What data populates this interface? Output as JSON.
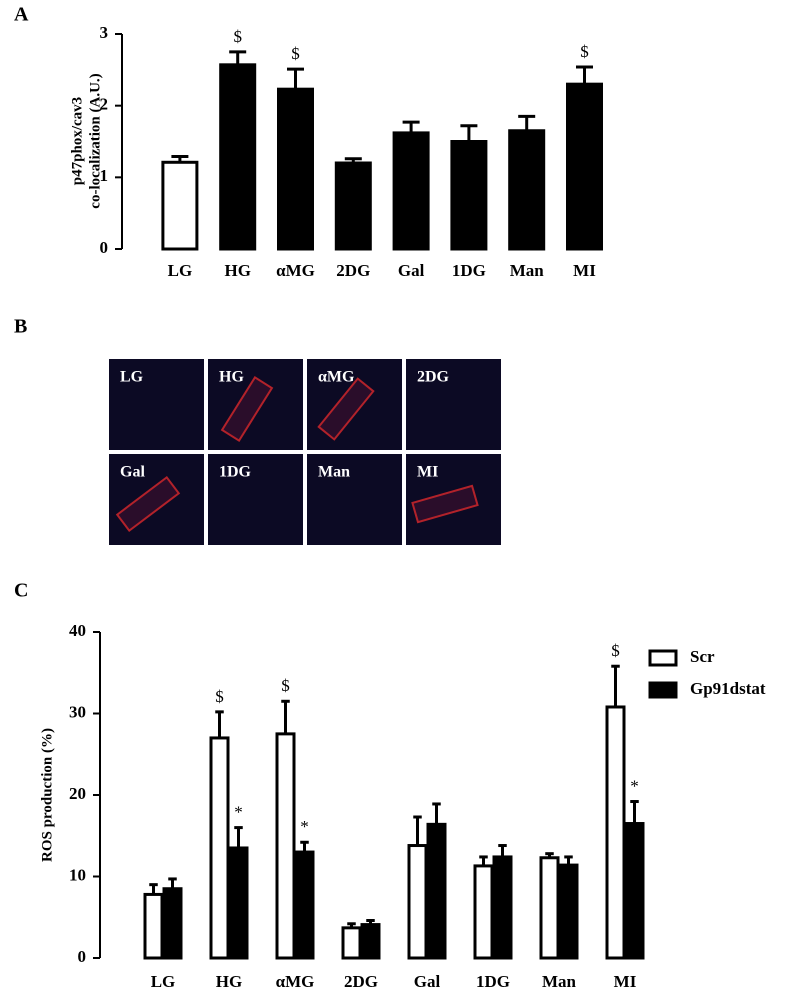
{
  "chart_data": [
    {
      "type": "bar",
      "panel_label": "A",
      "y_label": [
        "p47phox/cav3",
        "co-localization (A.U.)"
      ],
      "categories": [
        "LG",
        "HG",
        "αMG",
        "2DG",
        "Gal",
        "1DG",
        "Man",
        "MI"
      ],
      "values": [
        1.21,
        2.57,
        2.23,
        1.2,
        1.62,
        1.5,
        1.65,
        2.3
      ],
      "errors": [
        0.08,
        0.18,
        0.28,
        0.06,
        0.15,
        0.22,
        0.2,
        0.24
      ],
      "annotations": [
        null,
        "$",
        "$",
        null,
        null,
        null,
        null,
        "$"
      ],
      "colors": [
        "#ffffff",
        "#000000",
        "#000000",
        "#000000",
        "#000000",
        "#000000",
        "#000000",
        "#000000"
      ],
      "ylim": [
        0,
        3
      ],
      "yticks": [
        0,
        1,
        2,
        3
      ]
    },
    {
      "type": "grouped_bar",
      "panel_label": "C",
      "y_label": [
        "ROS production (%)"
      ],
      "categories": [
        "LG",
        "HG",
        "αMG",
        "2DG",
        "Gal",
        "1DG",
        "Man",
        "MI"
      ],
      "series": [
        {
          "name": "Scr",
          "color": "#ffffff",
          "values": [
            7.8,
            27,
            27.5,
            3.7,
            13.8,
            11.3,
            12.3,
            30.8
          ],
          "errors": [
            1.2,
            3.2,
            4,
            0.5,
            3.5,
            1.1,
            0.5,
            5
          ],
          "annotations": [
            null,
            "$",
            "$",
            null,
            null,
            null,
            null,
            "$"
          ]
        },
        {
          "name": "Gp91dstat",
          "color": "#000000",
          "values": [
            8.5,
            13.5,
            13,
            4.1,
            16.4,
            12.4,
            11.4,
            16.5
          ],
          "errors": [
            1.2,
            2.5,
            1.2,
            0.5,
            2.5,
            1.4,
            1,
            2.7
          ],
          "annotations": [
            null,
            "*",
            "*",
            null,
            null,
            null,
            null,
            "*"
          ]
        }
      ],
      "ylim": [
        0,
        40
      ],
      "yticks": [
        0,
        10,
        20,
        30,
        40
      ],
      "legend": "upper-right"
    }
  ],
  "image_panel": {
    "panel_label": "B",
    "tiles": [
      "LG",
      "HG",
      "αMG",
      "2DG",
      "Gal",
      "1DG",
      "Man",
      "MI"
    ]
  }
}
